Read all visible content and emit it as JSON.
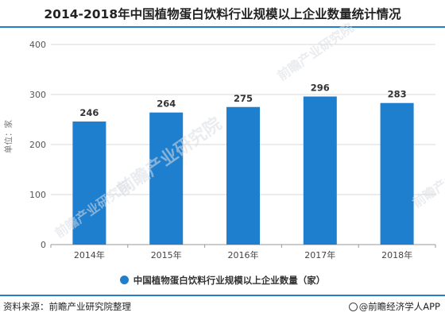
{
  "title": "2014-2018年中国植物蛋白饮料行业规模以上企业数量统计情况",
  "colors": {
    "bar": "#1f7fcf",
    "accent": "#1f7fcf",
    "axis": "#999999",
    "grid": "#d9d9d9"
  },
  "watermark_text": "前瞻产业研究院",
  "chart_data": {
    "type": "bar",
    "categories": [
      "2014年",
      "2015年",
      "2016年",
      "2017年",
      "2018年"
    ],
    "series": [
      {
        "name": "中国植物蛋白饮料行业规模以上企业数量（家）",
        "values": [
          246,
          264,
          275,
          296,
          283
        ]
      }
    ],
    "ylabel": "单位：家",
    "ylim": [
      0,
      400
    ],
    "yticks": [
      0,
      100,
      200,
      300,
      400
    ],
    "grid": true,
    "data_labels": true,
    "legend_position": "bottom"
  },
  "footer": {
    "source": "资料来源：前瞻产业研究院整理",
    "brand": "@前瞻经济学人APP",
    "brand_icon": "app-logo-icon"
  }
}
